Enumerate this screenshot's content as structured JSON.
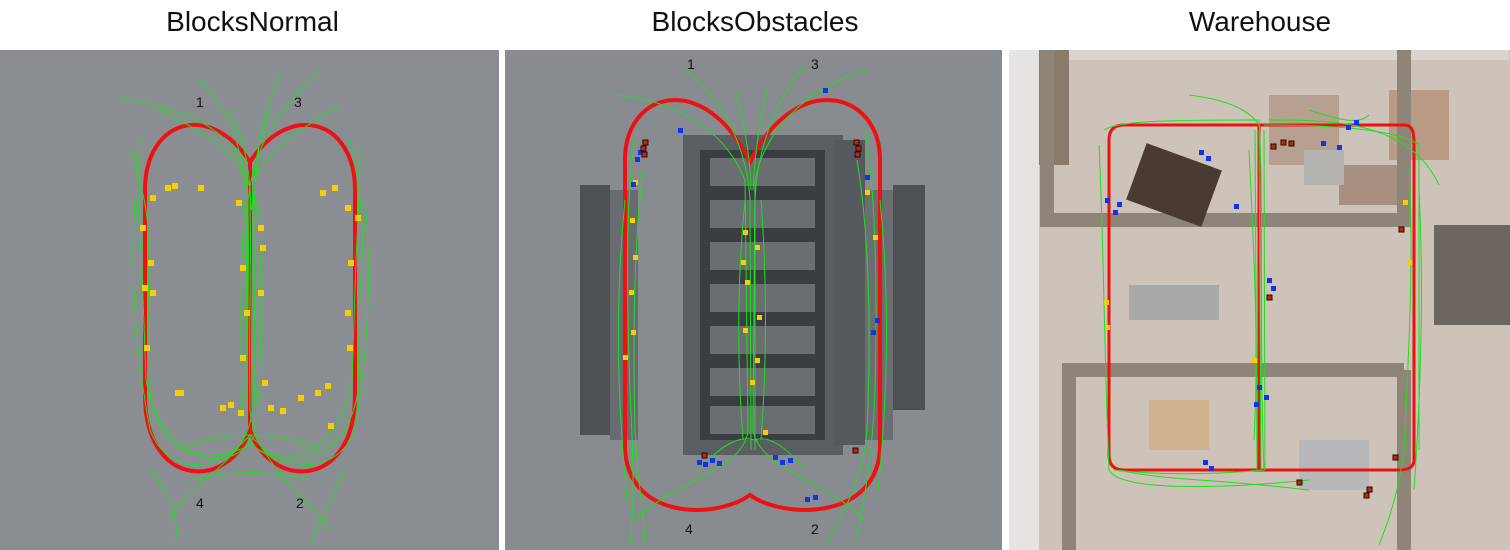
{
  "panels": [
    {
      "title": "BlocksNormal",
      "labels": [
        "1",
        "3",
        "4",
        "2"
      ]
    },
    {
      "title": "BlocksObstacles",
      "labels": [
        "1",
        "3",
        "4",
        "2"
      ]
    },
    {
      "title": "Warehouse",
      "labels": []
    }
  ],
  "colors": {
    "planned_path": "#ee1111",
    "trajectories": "#22dd22",
    "yellow_markers": "#f5d000",
    "blue_markers": "#1133ee",
    "red_markers": "#cc2200",
    "blocks_bg": "#8a8d92",
    "warehouse_bg": "#cfc6bb"
  }
}
